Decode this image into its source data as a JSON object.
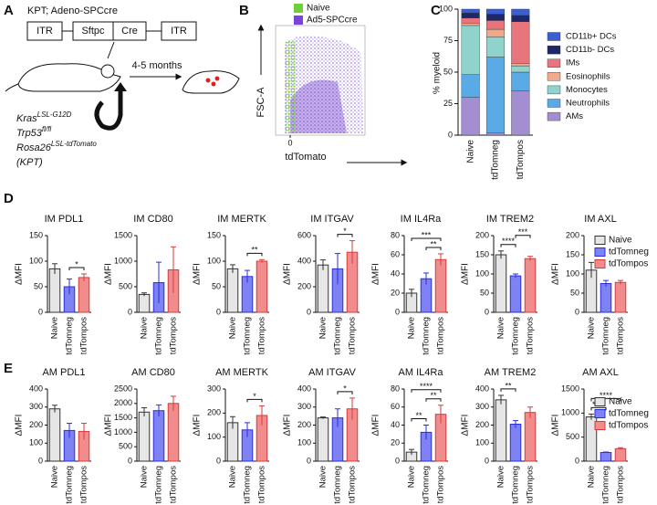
{
  "panels": [
    "A",
    "B",
    "C",
    "D",
    "E"
  ],
  "diagram": {
    "title": "KPT; Adeno-SPCcre",
    "construct": [
      "ITR",
      "Sftpc",
      "Cre",
      "ITR"
    ],
    "time": "4-5 months",
    "genes": [
      {
        "name": "Kras",
        "sup": "LSL-G12D"
      },
      {
        "name": "Trp53",
        "sup": "fl/fl"
      },
      {
        "name": "Rosa26",
        "sup": "LSL-tdTomato"
      }
    ],
    "genotype": "(KPT)"
  },
  "chart_data": [
    {
      "type": "flow",
      "xlabel": "tdTomato",
      "ylabel": "FSC-A",
      "xticks": [
        0
      ],
      "series": [
        {
          "name": "Naive",
          "color": "#6fce3a"
        },
        {
          "name": "Ad5-SPCcre",
          "color": "#7b44d8"
        }
      ]
    },
    {
      "type": "stacked_bar",
      "ylabel": "% myeloid",
      "categories": [
        "Naive",
        "tdTomneg",
        "tdTompos"
      ],
      "ylim": [
        0,
        100
      ],
      "yticks": [
        0,
        25,
        50,
        75,
        100
      ],
      "series": [
        {
          "name": "AMs",
          "color": "#a48ed2",
          "values": [
            30,
            2,
            35
          ]
        },
        {
          "name": "Neutrophils",
          "color": "#5aaae6",
          "values": [
            18,
            60,
            15
          ]
        },
        {
          "name": "Monocytes",
          "color": "#8fd3cc",
          "values": [
            39,
            16,
            5
          ]
        },
        {
          "name": "Eosinophils",
          "color": "#f2a98a",
          "values": [
            2,
            6,
            2
          ]
        },
        {
          "name": "IMs",
          "color": "#e8747c",
          "values": [
            4,
            7,
            33
          ]
        },
        {
          "name": "CD11b- DCs",
          "color": "#1e2868",
          "values": [
            4,
            5,
            5
          ]
        },
        {
          "name": "CD11b+ DCs",
          "color": "#3b5fd0",
          "values": [
            3,
            4,
            5
          ]
        }
      ]
    },
    {
      "type": "bar",
      "title": "IM PDL1",
      "ylabel": "ΔMFI",
      "categories": [
        "Naive",
        "tdTomneg",
        "tdTompos"
      ],
      "colors": [
        "#e6e6e6",
        "#7f82f2",
        "#f08c8c"
      ],
      "values": [
        85,
        50,
        68
      ],
      "errors": [
        10,
        15,
        7
      ],
      "ylim": [
        0,
        150
      ],
      "yticks": [
        0,
        50,
        100,
        150
      ],
      "significance": [
        {
          "from": 1,
          "to": 2,
          "label": "*"
        }
      ]
    },
    {
      "type": "bar",
      "title": "IM CD80",
      "ylabel": "ΔMFI",
      "categories": [
        "Naive",
        "tdTomneg",
        "tdTompos"
      ],
      "colors": [
        "#e6e6e6",
        "#7f82f2",
        "#f08c8c"
      ],
      "values": [
        350,
        580,
        830
      ],
      "errors": [
        30,
        400,
        450
      ],
      "ylim": [
        0,
        1500
      ],
      "yticks": [
        0,
        500,
        1000,
        1500
      ],
      "significance": []
    },
    {
      "type": "bar",
      "title": "IM MERTK",
      "ylabel": "ΔMFI",
      "categories": [
        "Naive",
        "tdTomneg",
        "tdTompos"
      ],
      "colors": [
        "#e6e6e6",
        "#7f82f2",
        "#f08c8c"
      ],
      "values": [
        85,
        70,
        100
      ],
      "errors": [
        8,
        12,
        3
      ],
      "ylim": [
        0,
        150
      ],
      "yticks": [
        0,
        50,
        100,
        150
      ],
      "significance": [
        {
          "from": 1,
          "to": 2,
          "label": "**"
        }
      ]
    },
    {
      "type": "bar",
      "title": "IM ITGAV",
      "ylabel": "ΔMFI",
      "categories": [
        "Naive",
        "tdTomneg",
        "tdTompos"
      ],
      "colors": [
        "#e6e6e6",
        "#7f82f2",
        "#f08c8c"
      ],
      "values": [
        370,
        340,
        470
      ],
      "errors": [
        40,
        120,
        90
      ],
      "ylim": [
        0,
        600
      ],
      "yticks": [
        0,
        200,
        400,
        600
      ],
      "significance": [
        {
          "from": 1,
          "to": 2,
          "label": "*"
        }
      ]
    },
    {
      "type": "bar",
      "title": "IM IL4Ra",
      "ylabel": "ΔMFI",
      "categories": [
        "Naive",
        "tdTomneg",
        "tdTompos"
      ],
      "colors": [
        "#e6e6e6",
        "#7f82f2",
        "#f08c8c"
      ],
      "values": [
        20,
        35,
        55
      ],
      "errors": [
        4,
        6,
        6
      ],
      "ylim": [
        0,
        80
      ],
      "yticks": [
        0,
        20,
        40,
        60,
        80
      ],
      "significance": [
        {
          "from": 1,
          "to": 2,
          "label": "**"
        },
        {
          "from": 0,
          "to": 2,
          "label": "***"
        }
      ]
    },
    {
      "type": "bar",
      "title": "IM TREM2",
      "ylabel": "ΔMFI",
      "categories": [
        "Naive",
        "tdTomneg",
        "tdTompos"
      ],
      "colors": [
        "#e6e6e6",
        "#7f82f2",
        "#f08c8c"
      ],
      "values": [
        150,
        95,
        140
      ],
      "errors": [
        10,
        5,
        6
      ],
      "ylim": [
        0,
        200
      ],
      "yticks": [
        0,
        50,
        100,
        150,
        200
      ],
      "significance": [
        {
          "from": 0,
          "to": 1,
          "label": "****"
        },
        {
          "from": 1,
          "to": 2,
          "label": "***"
        }
      ]
    },
    {
      "type": "bar",
      "title": "IM AXL",
      "ylabel": "ΔMFI",
      "categories": [
        "Naive",
        "tdTomneg",
        "tdTompos"
      ],
      "colors": [
        "#e6e6e6",
        "#7f82f2",
        "#f08c8c"
      ],
      "values": [
        110,
        75,
        78
      ],
      "errors": [
        20,
        8,
        5
      ],
      "ylim": [
        0,
        200
      ],
      "yticks": [
        0,
        50,
        100,
        150,
        200
      ],
      "significance": []
    },
    {
      "type": "bar",
      "title": "AM PDL1",
      "ylabel": "ΔMFI",
      "categories": [
        "Naive",
        "tdTomneg",
        "tdTompos"
      ],
      "colors": [
        "#e6e6e6",
        "#7f82f2",
        "#f08c8c"
      ],
      "values": [
        290,
        170,
        165
      ],
      "errors": [
        20,
        40,
        45
      ],
      "ylim": [
        0,
        400
      ],
      "yticks": [
        0,
        100,
        200,
        300,
        400
      ],
      "significance": []
    },
    {
      "type": "bar",
      "title": "AM CD80",
      "ylabel": "ΔMFI",
      "categories": [
        "Naive",
        "tdTomneg",
        "tdTompos"
      ],
      "colors": [
        "#e6e6e6",
        "#7f82f2",
        "#f08c8c"
      ],
      "values": [
        1700,
        1750,
        2000
      ],
      "errors": [
        150,
        200,
        250
      ],
      "ylim": [
        0,
        2500
      ],
      "yticks": [
        0,
        500,
        1000,
        1500,
        2000,
        2500
      ],
      "significance": []
    },
    {
      "type": "bar",
      "title": "AM MERTK",
      "ylabel": "ΔMFI",
      "categories": [
        "Naive",
        "tdTomneg",
        "tdTompos"
      ],
      "colors": [
        "#e6e6e6",
        "#7f82f2",
        "#f08c8c"
      ],
      "values": [
        160,
        130,
        190
      ],
      "errors": [
        25,
        30,
        40
      ],
      "ylim": [
        0,
        300
      ],
      "yticks": [
        0,
        100,
        200,
        300
      ],
      "significance": [
        {
          "from": 1,
          "to": 2,
          "label": "*"
        }
      ]
    },
    {
      "type": "bar",
      "title": "AM ITGAV",
      "ylabel": "ΔMFI",
      "categories": [
        "Naive",
        "tdTomneg",
        "tdTompos"
      ],
      "colors": [
        "#e6e6e6",
        "#7f82f2",
        "#f08c8c"
      ],
      "values": [
        240,
        240,
        290
      ],
      "errors": [
        5,
        50,
        60
      ],
      "ylim": [
        0,
        400
      ],
      "yticks": [
        0,
        100,
        200,
        300,
        400
      ],
      "significance": [
        {
          "from": 1,
          "to": 2,
          "label": "*"
        }
      ]
    },
    {
      "type": "bar",
      "title": "AM IL4Ra",
      "ylabel": "ΔMFI",
      "categories": [
        "Naive",
        "tdTomneg",
        "tdTompos"
      ],
      "colors": [
        "#e6e6e6",
        "#7f82f2",
        "#f08c8c"
      ],
      "values": [
        10,
        32,
        52
      ],
      "errors": [
        3,
        8,
        10
      ],
      "ylim": [
        0,
        80
      ],
      "yticks": [
        0,
        20,
        40,
        60,
        80
      ],
      "significance": [
        {
          "from": 0,
          "to": 1,
          "label": "**"
        },
        {
          "from": 1,
          "to": 2,
          "label": "**"
        },
        {
          "from": 0,
          "to": 2,
          "label": "****"
        }
      ]
    },
    {
      "type": "bar",
      "title": "AM TREM2",
      "ylabel": "ΔMFI",
      "categories": [
        "Naive",
        "tdTomneg",
        "tdTompos"
      ],
      "colors": [
        "#e6e6e6",
        "#7f82f2",
        "#f08c8c"
      ],
      "values": [
        340,
        205,
        270
      ],
      "errors": [
        25,
        20,
        30
      ],
      "ylim": [
        0,
        400
      ],
      "yticks": [
        0,
        100,
        200,
        300,
        400
      ],
      "significance": [
        {
          "from": 0,
          "to": 1,
          "label": "**"
        }
      ]
    },
    {
      "type": "bar",
      "title": "AM AXL",
      "ylabel": "ΔMFI",
      "categories": [
        "Naive",
        "tdTomneg",
        "tdTompos"
      ],
      "colors": [
        "#e6e6e6",
        "#7f82f2",
        "#f08c8c"
      ],
      "values": [
        920,
        180,
        260
      ],
      "errors": [
        60,
        10,
        20
      ],
      "ylim": [
        0,
        1500
      ],
      "yticks": [
        0,
        500,
        1000,
        1500
      ],
      "significance": [
        {
          "from": 0,
          "to": 1,
          "label": "****"
        },
        {
          "from": 0,
          "to": 2,
          "label": "****"
        }
      ]
    }
  ]
}
